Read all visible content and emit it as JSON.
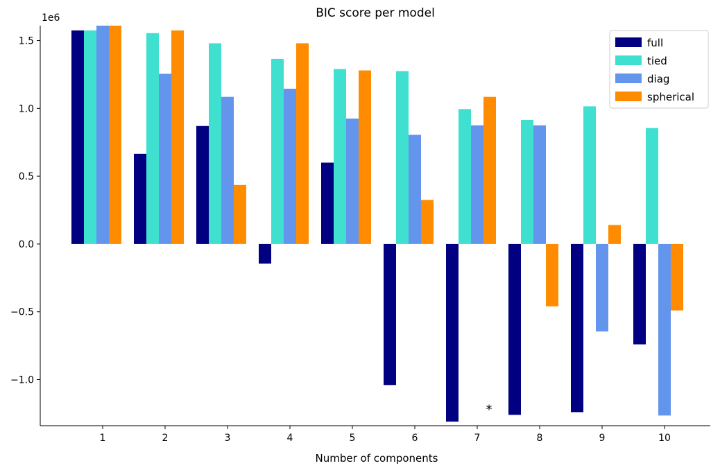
{
  "chart_data": {
    "type": "bar",
    "title": "BIC score per model",
    "xlabel": "Number of components",
    "ylabel": "",
    "scale_label": "1e6",
    "categories": [
      "1",
      "2",
      "3",
      "4",
      "5",
      "6",
      "7",
      "8",
      "9",
      "10"
    ],
    "ylim": [
      -1.34,
      1.61
    ],
    "yticks": [
      -1.0,
      -0.5,
      0.0,
      0.5,
      1.0,
      1.5
    ],
    "ytick_labels": [
      "−1.0",
      "−0.5",
      "0.0",
      "0.5",
      "1.0",
      "1.5"
    ],
    "series": [
      {
        "name": "full",
        "color": "#000080",
        "values": [
          1.575,
          0.665,
          0.87,
          -0.145,
          0.6,
          -1.04,
          -1.31,
          -1.26,
          -1.24,
          -0.74
        ]
      },
      {
        "name": "tied",
        "color": "#40E0D0",
        "values": [
          1.575,
          1.555,
          1.48,
          1.365,
          1.29,
          1.275,
          0.995,
          0.915,
          1.015,
          0.855
        ]
      },
      {
        "name": "diag",
        "color": "#6495ED",
        "values": [
          1.61,
          1.255,
          1.085,
          1.145,
          0.925,
          0.805,
          0.875,
          0.875,
          -0.645,
          -1.265
        ]
      },
      {
        "name": "spherical",
        "color": "#FF8C00",
        "values": [
          1.61,
          1.575,
          0.435,
          1.48,
          1.28,
          0.325,
          1.085,
          -0.46,
          0.14,
          -0.49
        ]
      }
    ],
    "annotation": {
      "text": "*",
      "category_index": 6,
      "value": -1.2
    },
    "legend": {
      "position": "top-right"
    },
    "grid": false
  }
}
